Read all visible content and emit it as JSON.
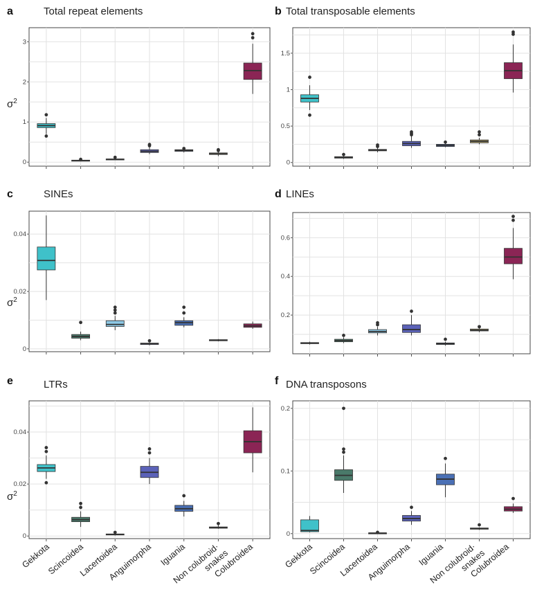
{
  "colors": {
    "Gekkota": "#3fc1c9",
    "Scincoidea": "#4a7a6a",
    "Lacertoidea": "#8ec9e6",
    "Anguimorpha": "#5b62b8",
    "Iguania": "#4a70b5",
    "Non colubroid snakes": "#b5a46a",
    "Colubroidea": "#8b2555"
  },
  "chart_data": [
    {
      "type": "box",
      "letter": "a",
      "title": "Total repeat elements",
      "ylabel": "σ2",
      "ylim": [
        -0.1,
        3.35
      ],
      "yticks": [
        0,
        1,
        2,
        3
      ],
      "ytick_labels": [
        "0",
        "1",
        "2",
        "3"
      ],
      "categories": [
        "Gekkota",
        "Scincoidea",
        "Lacertoidea",
        "Anguimorpha",
        "Iguania",
        "Non colubroid snakes",
        "Colubroidea"
      ],
      "boxes": [
        {
          "low": 0.7,
          "q1": 0.86,
          "median": 0.91,
          "q3": 0.96,
          "high": 1.1,
          "outliers": [
            0.65,
            1.18
          ]
        },
        {
          "low": 0.02,
          "q1": 0.03,
          "median": 0.04,
          "q3": 0.05,
          "high": 0.06,
          "outliers": [
            0.07
          ]
        },
        {
          "low": 0.05,
          "q1": 0.06,
          "median": 0.07,
          "q3": 0.08,
          "high": 0.1,
          "outliers": [
            0.12
          ]
        },
        {
          "low": 0.2,
          "q1": 0.24,
          "median": 0.27,
          "q3": 0.31,
          "high": 0.38,
          "outliers": [
            0.41,
            0.44
          ]
        },
        {
          "low": 0.24,
          "q1": 0.27,
          "median": 0.29,
          "q3": 0.31,
          "high": 0.33,
          "outliers": [
            0.34
          ]
        },
        {
          "low": 0.15,
          "q1": 0.19,
          "median": 0.21,
          "q3": 0.23,
          "high": 0.27,
          "outliers": [
            0.29,
            0.31
          ]
        },
        {
          "low": 1.7,
          "q1": 2.06,
          "median": 2.28,
          "q3": 2.47,
          "high": 2.95,
          "outliers": [
            3.1,
            3.2
          ]
        }
      ]
    },
    {
      "type": "box",
      "letter": "b",
      "title": "Total transposable elements",
      "ylabel": "",
      "ylim": [
        -0.05,
        1.85
      ],
      "yticks": [
        0,
        0.5,
        1,
        1.5
      ],
      "ytick_labels": [
        "0",
        "0.5",
        "1",
        "1.5"
      ],
      "categories": [
        "Gekkota",
        "Scincoidea",
        "Lacertoidea",
        "Anguimorpha",
        "Iguania",
        "Non colubroid snakes",
        "Colubroidea"
      ],
      "boxes": [
        {
          "low": 0.72,
          "q1": 0.83,
          "median": 0.88,
          "q3": 0.93,
          "high": 1.06,
          "outliers": [
            0.65,
            1.17
          ]
        },
        {
          "low": 0.05,
          "q1": 0.06,
          "median": 0.07,
          "q3": 0.08,
          "high": 0.09,
          "outliers": [
            0.11
          ]
        },
        {
          "low": 0.14,
          "q1": 0.16,
          "median": 0.17,
          "q3": 0.18,
          "high": 0.2,
          "outliers": [
            0.22,
            0.24
          ]
        },
        {
          "low": 0.2,
          "q1": 0.23,
          "median": 0.26,
          "q3": 0.29,
          "high": 0.36,
          "outliers": [
            0.38,
            0.4,
            0.42
          ]
        },
        {
          "low": 0.21,
          "q1": 0.22,
          "median": 0.235,
          "q3": 0.25,
          "high": 0.27,
          "outliers": [
            0.28
          ]
        },
        {
          "low": 0.25,
          "q1": 0.27,
          "median": 0.29,
          "q3": 0.31,
          "high": 0.34,
          "outliers": [
            0.38,
            0.42
          ]
        },
        {
          "low": 0.96,
          "q1": 1.15,
          "median": 1.26,
          "q3": 1.37,
          "high": 1.62,
          "outliers": [
            1.76,
            1.79
          ]
        }
      ]
    },
    {
      "type": "box",
      "letter": "c",
      "title": "SINEs",
      "ylabel": "σ2",
      "ylim": [
        -0.001,
        0.048
      ],
      "yticks": [
        0,
        0.02,
        0.04
      ],
      "ytick_labels": [
        "0",
        "0.02",
        "0.04"
      ],
      "categories": [
        "Gekkota",
        "Scincoidea",
        "Lacertoidea",
        "Anguimorpha",
        "Iguania",
        "Non colubroid snakes",
        "Colubroidea"
      ],
      "boxes": [
        {
          "low": 0.017,
          "q1": 0.0275,
          "median": 0.0308,
          "q3": 0.0355,
          "high": 0.0465,
          "outliers": []
        },
        {
          "low": 0.003,
          "q1": 0.0037,
          "median": 0.0043,
          "q3": 0.005,
          "high": 0.006,
          "outliers": [
            0.0092
          ]
        },
        {
          "low": 0.0065,
          "q1": 0.0078,
          "median": 0.0085,
          "q3": 0.0098,
          "high": 0.0115,
          "outliers": [
            0.0125,
            0.0135,
            0.0145
          ]
        },
        {
          "low": 0.0012,
          "q1": 0.0015,
          "median": 0.0018,
          "q3": 0.002,
          "high": 0.0022,
          "outliers": [
            0.0028
          ]
        },
        {
          "low": 0.0075,
          "q1": 0.0082,
          "median": 0.0091,
          "q3": 0.0098,
          "high": 0.011,
          "outliers": [
            0.0125,
            0.0145
          ]
        },
        {
          "low": 0.0026,
          "q1": 0.0028,
          "median": 0.003,
          "q3": 0.0032,
          "high": 0.0034,
          "outliers": []
        },
        {
          "low": 0.007,
          "q1": 0.0075,
          "median": 0.008,
          "q3": 0.0087,
          "high": 0.0095,
          "outliers": []
        }
      ]
    },
    {
      "type": "box",
      "letter": "d",
      "title": "LINEs",
      "ylabel": "",
      "ylim": [
        0.0,
        0.73
      ],
      "yticks": [
        0.2,
        0.4,
        0.6
      ],
      "ytick_labels": [
        "0.2",
        "0.4",
        "0.6"
      ],
      "categories": [
        "Gekkota",
        "Scincoidea",
        "Lacertoidea",
        "Anguimorpha",
        "Iguania",
        "Non colubroid snakes",
        "Colubroidea"
      ],
      "boxes": [
        {
          "low": 0.048,
          "q1": 0.052,
          "median": 0.055,
          "q3": 0.058,
          "high": 0.062,
          "outliers": []
        },
        {
          "low": 0.055,
          "q1": 0.062,
          "median": 0.068,
          "q3": 0.075,
          "high": 0.085,
          "outliers": [
            0.095
          ]
        },
        {
          "low": 0.095,
          "q1": 0.108,
          "median": 0.115,
          "q3": 0.125,
          "high": 0.14,
          "outliers": [
            0.15,
            0.16
          ]
        },
        {
          "low": 0.095,
          "q1": 0.11,
          "median": 0.125,
          "q3": 0.15,
          "high": 0.2,
          "outliers": [
            0.22
          ]
        },
        {
          "low": 0.042,
          "q1": 0.048,
          "median": 0.052,
          "q3": 0.056,
          "high": 0.062,
          "outliers": [
            0.075
          ]
        },
        {
          "low": 0.112,
          "q1": 0.118,
          "median": 0.122,
          "q3": 0.128,
          "high": 0.133,
          "outliers": [
            0.14
          ]
        },
        {
          "low": 0.385,
          "q1": 0.465,
          "median": 0.5,
          "q3": 0.545,
          "high": 0.65,
          "outliers": [
            0.69,
            0.71
          ]
        }
      ]
    },
    {
      "type": "box",
      "letter": "e",
      "title": "LTRs",
      "ylabel": "σ2",
      "ylim": [
        -0.001,
        0.052
      ],
      "yticks": [
        0,
        0.02,
        0.04
      ],
      "ytick_labels": [
        "0",
        "0.02",
        "0.04"
      ],
      "categories": [
        "Gekkota",
        "Scincoidea",
        "Lacertoidea",
        "Anguimorpha",
        "Iguania",
        "Non colubroid snakes",
        "Colubroidea"
      ],
      "boxes": [
        {
          "low": 0.022,
          "q1": 0.0248,
          "median": 0.0262,
          "q3": 0.0275,
          "high": 0.031,
          "outliers": [
            0.0205,
            0.0325,
            0.034
          ]
        },
        {
          "low": 0.0035,
          "q1": 0.0055,
          "median": 0.0063,
          "q3": 0.0072,
          "high": 0.0095,
          "outliers": [
            0.011,
            0.0125
          ]
        },
        {
          "low": 0.0002,
          "q1": 0.0004,
          "median": 0.0006,
          "q3": 0.0008,
          "high": 0.0011,
          "outliers": [
            0.0014
          ]
        },
        {
          "low": 0.02,
          "q1": 0.0225,
          "median": 0.0245,
          "q3": 0.0268,
          "high": 0.03,
          "outliers": [
            0.032,
            0.0335
          ]
        },
        {
          "low": 0.0075,
          "q1": 0.0095,
          "median": 0.0105,
          "q3": 0.0118,
          "high": 0.0135,
          "outliers": [
            0.0155
          ]
        },
        {
          "low": 0.0028,
          "q1": 0.003,
          "median": 0.0032,
          "q3": 0.0035,
          "high": 0.0042,
          "outliers": [
            0.0048
          ]
        },
        {
          "low": 0.0245,
          "q1": 0.032,
          "median": 0.0363,
          "q3": 0.0405,
          "high": 0.0495,
          "outliers": []
        }
      ]
    },
    {
      "type": "box",
      "letter": "f",
      "title": "DNA transposons",
      "ylabel": "",
      "ylim": [
        -0.008,
        0.212
      ],
      "yticks": [
        0,
        0.1,
        0.2
      ],
      "ytick_labels": [
        "0",
        "0.1",
        "0.2"
      ],
      "categories": [
        "Gekkota",
        "Scincoidea",
        "Lacertoidea",
        "Anguimorpha",
        "Iguania",
        "Non colubroid snakes",
        "Colubroidea"
      ],
      "boxes": [
        {
          "low": 0.002,
          "q1": 0.003,
          "median": 0.005,
          "q3": 0.022,
          "high": 0.028,
          "outliers": []
        },
        {
          "low": 0.065,
          "q1": 0.085,
          "median": 0.093,
          "q3": 0.102,
          "high": 0.125,
          "outliers": [
            0.13,
            0.135,
            0.2
          ]
        },
        {
          "low": 0.0003,
          "q1": 0.0005,
          "median": 0.0008,
          "q3": 0.0012,
          "high": 0.0015,
          "outliers": [
            0.002
          ]
        },
        {
          "low": 0.014,
          "q1": 0.02,
          "median": 0.024,
          "q3": 0.029,
          "high": 0.036,
          "outliers": [
            0.042
          ]
        },
        {
          "low": 0.058,
          "q1": 0.078,
          "median": 0.087,
          "q3": 0.095,
          "high": 0.112,
          "outliers": [
            0.12
          ]
        },
        {
          "low": 0.006,
          "q1": 0.007,
          "median": 0.008,
          "q3": 0.009,
          "high": 0.01,
          "outliers": [
            0.014
          ]
        },
        {
          "low": 0.033,
          "q1": 0.036,
          "median": 0.039,
          "q3": 0.043,
          "high": 0.048,
          "outliers": [
            0.056
          ]
        }
      ]
    }
  ],
  "x_labels": {
    "left": [
      "Gekkota",
      "Scincoidea",
      "Lacertoidea",
      "Anguimorpha",
      "Iguania",
      "Non colubroid·",
      "snakes",
      "Colubroidea"
    ],
    "right": [
      "Gekkota",
      "Scincoidea",
      "Lacertoidea",
      "Anguimorpha",
      "Iguania",
      "Non colubroid·",
      "snakes",
      "Colubroidea"
    ]
  }
}
